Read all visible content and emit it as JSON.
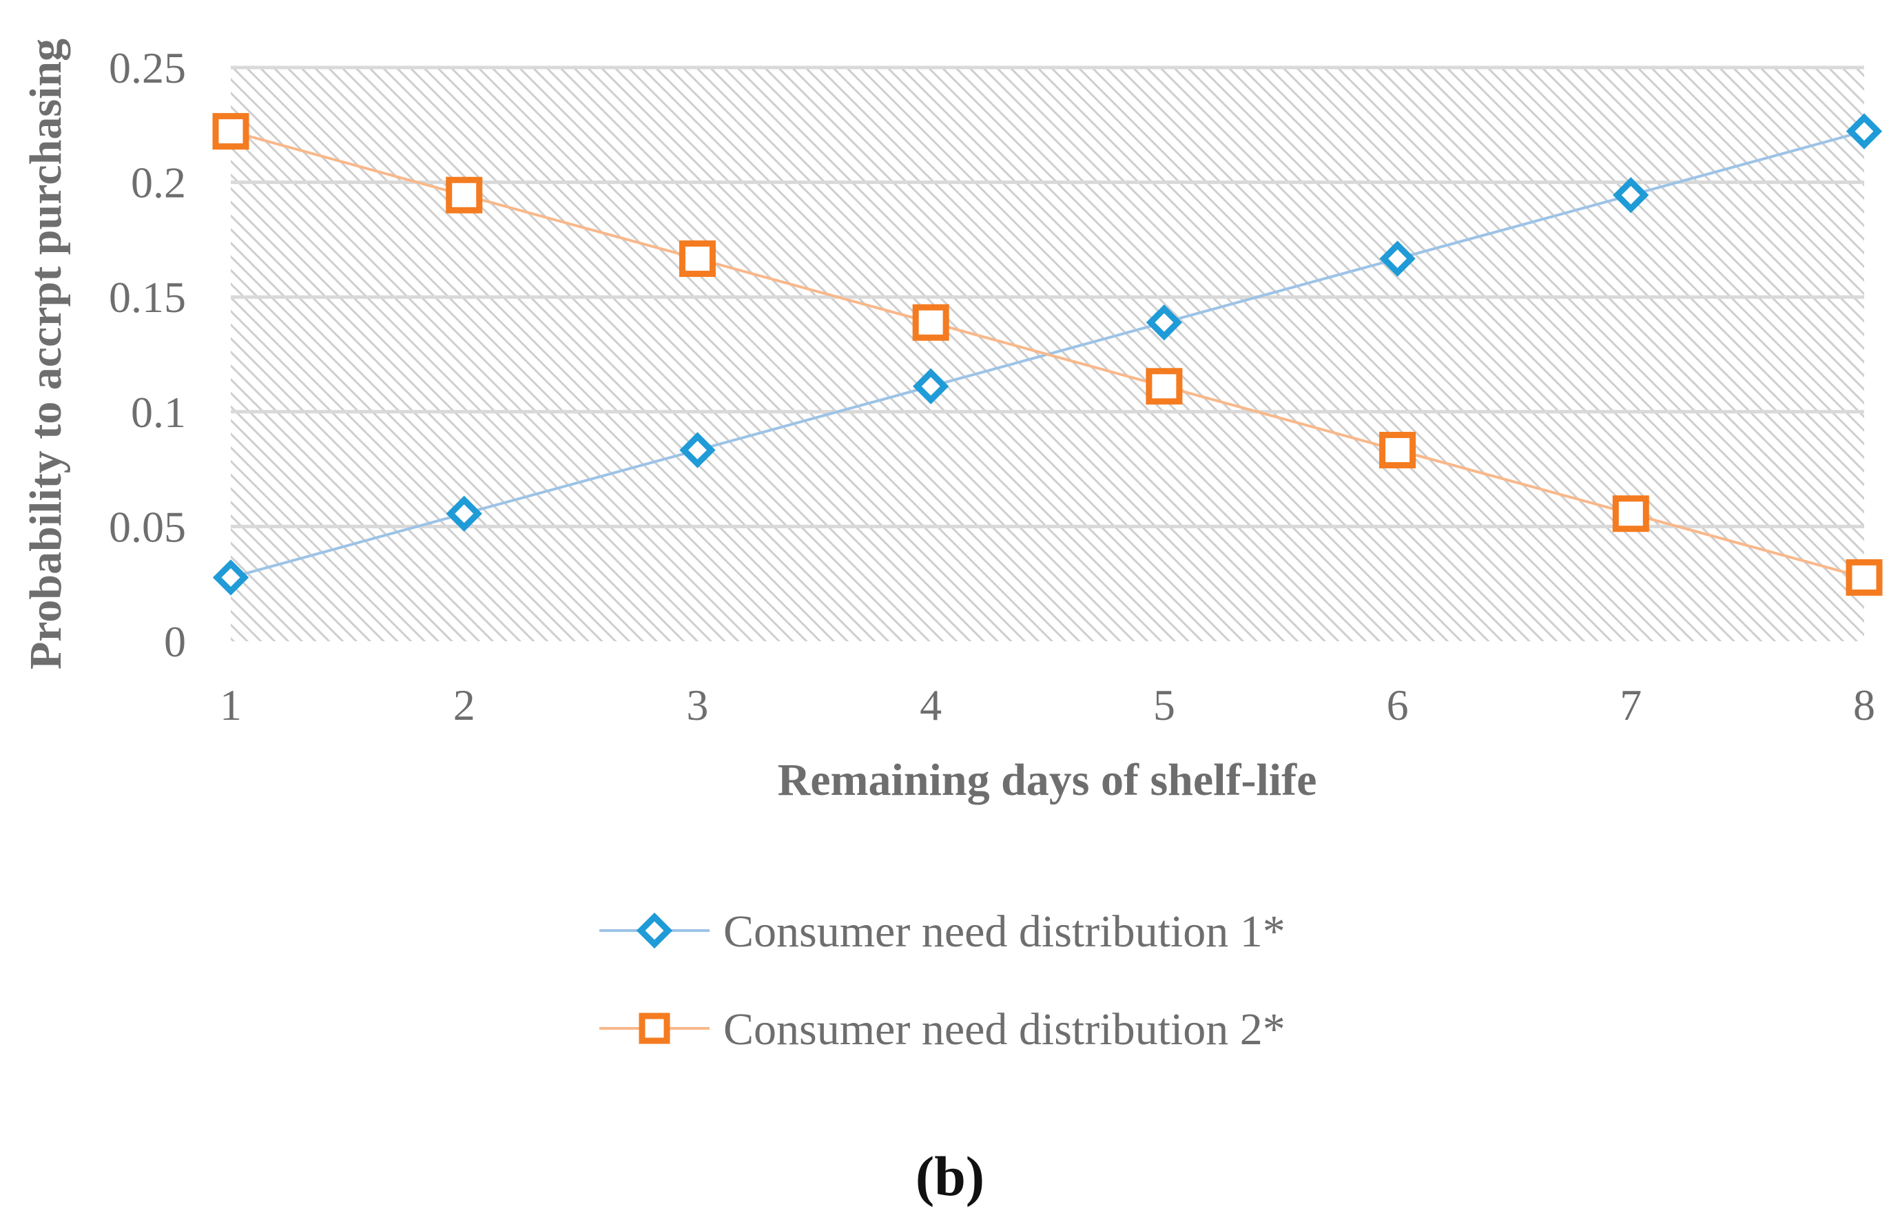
{
  "chart_data": {
    "type": "line",
    "title": "",
    "xlabel": "Remaining days of shelf-life",
    "ylabel": "Probability to accrpt purchasing",
    "x": [
      1,
      2,
      3,
      4,
      5,
      6,
      7,
      8
    ],
    "xticks": [
      "1",
      "2",
      "3",
      "4",
      "5",
      "6",
      "7",
      "8"
    ],
    "yticks": [
      "0",
      "0.05",
      "0.1",
      "0.15",
      "0.2",
      "0.25"
    ],
    "ytick_values": [
      0,
      0.05,
      0.1,
      0.15,
      0.2,
      0.25
    ],
    "ylim": [
      0,
      0.25
    ],
    "xlim": [
      1,
      8
    ],
    "grid": true,
    "legend_position": "bottom",
    "series": [
      {
        "name": "Consumer need distribution 1*",
        "marker": "diamond",
        "line_color": "#9dc3e6",
        "marker_color": "#1f9bd7",
        "values": [
          0.0278,
          0.0556,
          0.0833,
          0.1111,
          0.1389,
          0.1667,
          0.1944,
          0.2222
        ]
      },
      {
        "name": "Consumer need distribution 2*",
        "marker": "square",
        "line_color": "#f8b88b",
        "marker_color": "#f47b20",
        "values": [
          0.2222,
          0.1944,
          0.1667,
          0.1389,
          0.1111,
          0.0833,
          0.0556,
          0.0278
        ]
      }
    ],
    "caption": "(b)"
  },
  "colors": {
    "grid": "#d9d9d9",
    "hatch": "#c8c8c8",
    "axis_text": "#6e6e6e"
  }
}
